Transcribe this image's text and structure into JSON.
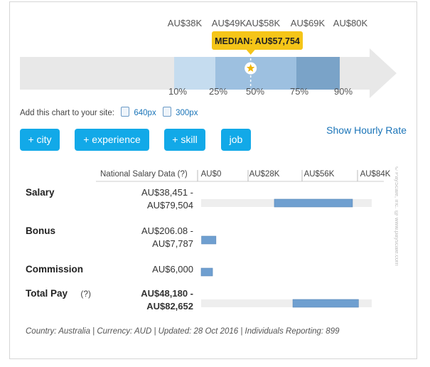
{
  "chart_data": [
    {
      "type": "range-band",
      "pointer": "median",
      "percentiles": [
        "10%",
        "25%",
        "50%",
        "75%",
        "90%"
      ],
      "tick_labels": [
        "AU$38K",
        "AU$49K",
        "AU$58K",
        "AU$69K",
        "AU$80K"
      ],
      "values": [
        38000,
        49000,
        58000,
        69000,
        80000
      ],
      "median_label": "MEDIAN: AU$57,754",
      "median_value": 57754,
      "colors": {
        "10-25": "#c5dcef",
        "25-50": "#9dc0e0",
        "50-75": "#9dc0e0",
        "75-90": "#7aa3c8",
        "track": "#e8e8e8",
        "median_badge": "#f5c518"
      }
    },
    {
      "type": "bar",
      "orientation": "horizontal-range",
      "header": "National Salary Data",
      "help": "(?)",
      "x_tick_labels": [
        "AU$0",
        "AU$28K",
        "AU$56K",
        "AU$84K"
      ],
      "x_ticks": [
        0,
        28000,
        56000,
        84000
      ],
      "xlim": [
        0,
        84000
      ],
      "rows": [
        {
          "name": "Salary",
          "range_text": [
            "AU$38,451 -",
            "AU$79,504"
          ],
          "low": 38451,
          "high": 79504,
          "track": true,
          "bold_value": false,
          "help": ""
        },
        {
          "name": "Bonus",
          "range_text": [
            "AU$206.08 -",
            "AU$7,787"
          ],
          "low": 206.08,
          "high": 7787,
          "track": false,
          "bold_value": false,
          "help": ""
        },
        {
          "name": "Commission",
          "range_text": [
            "AU$6,000"
          ],
          "low": 0,
          "high": 6000,
          "track": false,
          "bold_value": false,
          "help": ""
        },
        {
          "name": "Total Pay",
          "range_text": [
            "AU$48,180 -",
            "AU$82,652"
          ],
          "low": 48180,
          "high": 82652,
          "track": true,
          "bold_value": true,
          "help": "(?)"
        }
      ],
      "bar_color": "#6f9fd0"
    }
  ],
  "embed": {
    "label": "Add this chart to your site:",
    "size1": "640px",
    "size2": "300px"
  },
  "buttons": [
    "+ city",
    "+ experience",
    "+ skill",
    "job"
  ],
  "show_hourly": "Show Hourly Rate",
  "footer": "Country: Australia | Currency: AUD | Updated: 28 Oct 2016 | Individuals Reporting: 899",
  "watermark": "© PayScale, Inc. @ www.payscale.com"
}
